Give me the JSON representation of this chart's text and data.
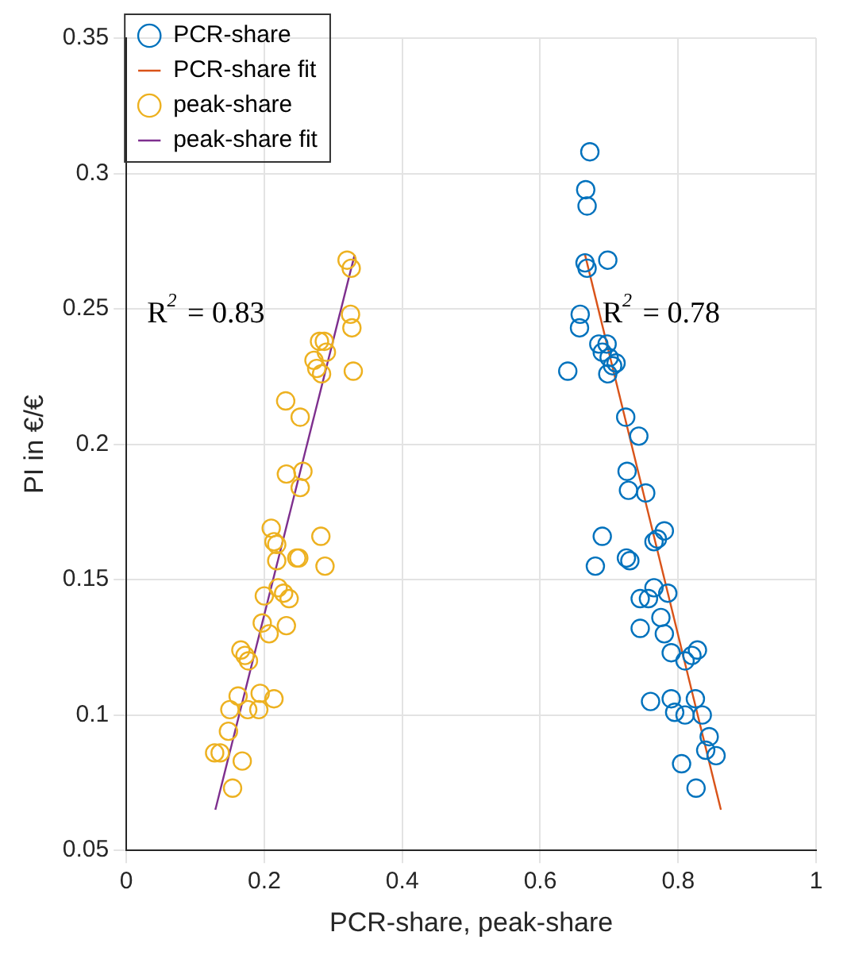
{
  "chart_data": {
    "type": "scatter",
    "xlabel": "PCR-share, peak-share",
    "ylabel": "PI in €/€",
    "xlim": [
      0,
      1
    ],
    "xticks": [
      0,
      0.2,
      0.4,
      0.6,
      0.8,
      1
    ],
    "ylim": [
      0.05,
      0.35
    ],
    "yticks": [
      0.05,
      0.1,
      0.15,
      0.2,
      0.25,
      0.3,
      0.35
    ],
    "grid": true,
    "legend": "top left",
    "marker": "circle",
    "series": [
      {
        "name": "PCR-share",
        "type": "scatter",
        "color": "#0072bd",
        "x": [
          0.672,
          0.666,
          0.668,
          0.665,
          0.668,
          0.698,
          0.658,
          0.657,
          0.64,
          0.685,
          0.697,
          0.7,
          0.705,
          0.71,
          0.698,
          0.69,
          0.724,
          0.743,
          0.726,
          0.728,
          0.753,
          0.69,
          0.68,
          0.765,
          0.77,
          0.78,
          0.725,
          0.73,
          0.745,
          0.757,
          0.765,
          0.785,
          0.775,
          0.745,
          0.78,
          0.79,
          0.81,
          0.82,
          0.828,
          0.76,
          0.79,
          0.795,
          0.825,
          0.835,
          0.845,
          0.84,
          0.855,
          0.805,
          0.826,
          0.81
        ],
        "values": [
          0.308,
          0.294,
          0.288,
          0.267,
          0.265,
          0.268,
          0.248,
          0.243,
          0.227,
          0.237,
          0.237,
          0.232,
          0.229,
          0.23,
          0.226,
          0.234,
          0.21,
          0.203,
          0.19,
          0.183,
          0.182,
          0.166,
          0.155,
          0.164,
          0.165,
          0.168,
          0.158,
          0.157,
          0.143,
          0.143,
          0.147,
          0.145,
          0.136,
          0.132,
          0.13,
          0.123,
          0.12,
          0.122,
          0.124,
          0.105,
          0.106,
          0.101,
          0.106,
          0.1,
          0.092,
          0.087,
          0.085,
          0.082,
          0.073,
          0.1
        ]
      },
      {
        "name": "PCR-share fit",
        "type": "line",
        "color": "#d95319",
        "marker": "none",
        "x": [
          0.665,
          0.862
        ],
        "values": [
          0.27,
          0.065
        ]
      },
      {
        "name": "peak-share",
        "type": "scatter",
        "color": "#edb120",
        "x": [
          0.32,
          0.326,
          0.325,
          0.327,
          0.28,
          0.287,
          0.29,
          0.272,
          0.276,
          0.283,
          0.329,
          0.231,
          0.252,
          0.232,
          0.256,
          0.252,
          0.21,
          0.214,
          0.218,
          0.282,
          0.218,
          0.247,
          0.25,
          0.288,
          0.22,
          0.2,
          0.228,
          0.236,
          0.197,
          0.207,
          0.232,
          0.166,
          0.172,
          0.177,
          0.162,
          0.15,
          0.194,
          0.176,
          0.192,
          0.214,
          0.148,
          0.128,
          0.136,
          0.168,
          0.154
        ],
        "values": [
          0.268,
          0.265,
          0.248,
          0.243,
          0.238,
          0.238,
          0.234,
          0.231,
          0.228,
          0.226,
          0.227,
          0.216,
          0.21,
          0.189,
          0.19,
          0.184,
          0.169,
          0.164,
          0.163,
          0.166,
          0.157,
          0.158,
          0.158,
          0.155,
          0.147,
          0.144,
          0.145,
          0.143,
          0.134,
          0.13,
          0.133,
          0.124,
          0.122,
          0.12,
          0.107,
          0.102,
          0.108,
          0.102,
          0.102,
          0.106,
          0.094,
          0.086,
          0.086,
          0.083,
          0.073
        ]
      },
      {
        "name": "peak-share fit",
        "type": "line",
        "color": "#7e2f8e",
        "marker": "none",
        "x": [
          0.129,
          0.331
        ],
        "values": [
          0.065,
          0.27
        ]
      }
    ],
    "annotations": [
      "R$^{2}$ = 0.83",
      "R$^{2}$ = 0.78"
    ]
  }
}
